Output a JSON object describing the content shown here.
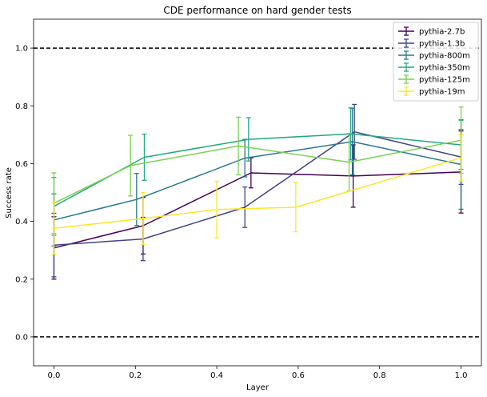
{
  "chart_data": {
    "type": "line",
    "title": "CDE performance on hard gender tests",
    "xlabel": "Layer",
    "ylabel": "Success rate",
    "xlim": [
      -0.05,
      1.05
    ],
    "ylim": [
      -0.1,
      1.1
    ],
    "xticks": [
      "0.0",
      "0.2",
      "0.4",
      "0.6",
      "0.8",
      "1.0"
    ],
    "yticks": [
      "0.0",
      "0.2",
      "0.4",
      "0.6",
      "0.8",
      "1.0"
    ],
    "grid": false,
    "legend_position": "top-right",
    "reference_lines": [
      0.0,
      1.0
    ],
    "series": [
      {
        "name": "pythia-2.7b",
        "color": "#440154",
        "x": [
          0.0,
          0.219,
          0.484,
          0.735,
          1.0
        ],
        "y": [
          0.308,
          0.385,
          0.568,
          0.557,
          0.571
        ],
        "err": [
          0.108,
          0.098,
          0.052,
          0.108,
          0.142
        ]
      },
      {
        "name": "pythia-1.3b",
        "color": "#414487",
        "x": [
          0.0,
          0.219,
          0.469,
          0.738,
          1.0
        ],
        "y": [
          0.318,
          0.339,
          0.449,
          0.71,
          0.623
        ],
        "err": [
          0.11,
          0.075,
          0.07,
          0.095,
          0.095
        ]
      },
      {
        "name": "pythia-800m",
        "color": "#2a788e",
        "x": [
          0.0,
          0.203,
          0.469,
          0.733,
          1.0
        ],
        "y": [
          0.405,
          0.476,
          0.619,
          0.676,
          0.597
        ],
        "err": [
          0.09,
          0.09,
          0.065,
          0.115,
          0.155
        ]
      },
      {
        "name": "pythia-350m",
        "color": "#22a884",
        "x": [
          0.0,
          0.222,
          0.478,
          0.729,
          1.0
        ],
        "y": [
          0.452,
          0.622,
          0.684,
          0.703,
          0.665
        ],
        "err": [
          0.1,
          0.08,
          0.075,
          0.09,
          0.085
        ]
      },
      {
        "name": "pythia-125m",
        "color": "#7ad151",
        "x": [
          0.0,
          0.188,
          0.453,
          0.725,
          1.0
        ],
        "y": [
          0.463,
          0.593,
          0.661,
          0.605,
          0.681
        ],
        "err": [
          0.105,
          0.105,
          0.1,
          0.1,
          0.115
        ]
      },
      {
        "name": "pythia-19m",
        "color": "#fde725",
        "x": [
          0.0,
          0.219,
          0.4,
          0.594,
          1.0
        ],
        "y": [
          0.376,
          0.41,
          0.441,
          0.449,
          0.62
        ],
        "err": [
          0.09,
          0.09,
          0.098,
          0.085,
          0.08
        ]
      }
    ]
  }
}
